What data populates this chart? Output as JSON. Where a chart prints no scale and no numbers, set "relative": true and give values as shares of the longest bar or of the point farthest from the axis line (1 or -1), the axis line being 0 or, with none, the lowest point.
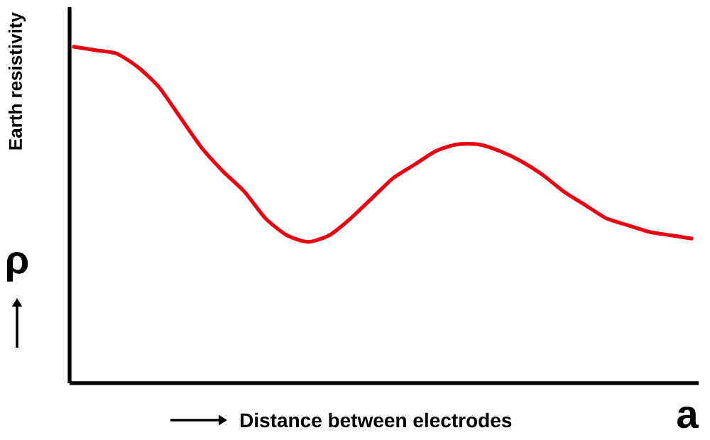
{
  "chart_data": {
    "type": "line",
    "relative": true,
    "xlabel": "Distance between electrodes",
    "ylabel": "Earth resistivity",
    "annotations": [
      "a",
      "ρ"
    ],
    "categories": [
      null,
      null,
      null,
      null,
      null,
      null,
      null,
      null,
      null,
      null,
      null,
      null,
      null,
      null,
      null,
      null,
      null,
      null,
      null,
      null,
      null,
      null,
      null,
      null,
      null,
      null,
      null,
      null,
      null,
      null
    ],
    "series": [
      {
        "color": "#e60012",
        "values": [
          1.0,
          0.99,
          0.98,
          0.94,
          0.88,
          0.79,
          0.7,
          0.63,
          0.57,
          0.49,
          0.44,
          0.42,
          0.44,
          0.49,
          0.55,
          0.61,
          0.65,
          0.69,
          0.71,
          0.71,
          0.69,
          0.66,
          0.62,
          0.57,
          0.53,
          0.49,
          0.47,
          0.45,
          0.44,
          0.43
        ]
      }
    ],
    "tick_labels": false
  }
}
